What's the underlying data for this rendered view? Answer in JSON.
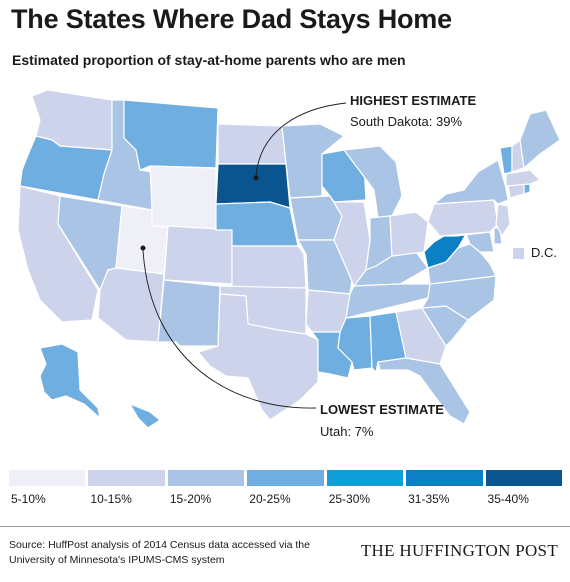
{
  "title": "The States Where Dad Stays Home",
  "subtitle": "Estimated proportion of stay-at-home parents who are men",
  "colors": {
    "c1": "#efeff8",
    "c2": "#cdd3ea",
    "c3": "#a9c4e4",
    "c4": "#6eaee0",
    "c5": "#129fd9",
    "c6": "#0c7fc5",
    "c7": "#0a5590"
  },
  "legend": [
    "5-10%",
    "10-15%",
    "15-20%",
    "20-25%",
    "25-30%",
    "31-35%",
    "35-40%"
  ],
  "states": [
    {
      "code": "WA",
      "class": "c2"
    },
    {
      "code": "OR",
      "class": "c4"
    },
    {
      "code": "CA",
      "class": "c2"
    },
    {
      "code": "ID",
      "class": "c3"
    },
    {
      "code": "NV",
      "class": "c3"
    },
    {
      "code": "UT",
      "class": "c1"
    },
    {
      "code": "AZ",
      "class": "c2"
    },
    {
      "code": "MT",
      "class": "c4"
    },
    {
      "code": "WY",
      "class": "c1"
    },
    {
      "code": "CO",
      "class": "c2"
    },
    {
      "code": "NM",
      "class": "c3"
    },
    {
      "code": "ND",
      "class": "c2"
    },
    {
      "code": "SD",
      "class": "c7"
    },
    {
      "code": "NE",
      "class": "c4"
    },
    {
      "code": "KS",
      "class": "c2"
    },
    {
      "code": "OK",
      "class": "c2"
    },
    {
      "code": "TX",
      "class": "c2"
    },
    {
      "code": "MN",
      "class": "c3"
    },
    {
      "code": "IA",
      "class": "c3"
    },
    {
      "code": "MO",
      "class": "c3"
    },
    {
      "code": "AR",
      "class": "c2"
    },
    {
      "code": "LA",
      "class": "c4"
    },
    {
      "code": "WI",
      "class": "c4"
    },
    {
      "code": "IL",
      "class": "c2"
    },
    {
      "code": "MS",
      "class": "c4"
    },
    {
      "code": "MI",
      "class": "c3"
    },
    {
      "code": "IN",
      "class": "c3"
    },
    {
      "code": "KY",
      "class": "c3"
    },
    {
      "code": "TN",
      "class": "c3"
    },
    {
      "code": "AL",
      "class": "c4"
    },
    {
      "code": "OH",
      "class": "c2"
    },
    {
      "code": "WV",
      "class": "c6"
    },
    {
      "code": "GA",
      "class": "c2"
    },
    {
      "code": "FL",
      "class": "c3"
    },
    {
      "code": "SC",
      "class": "c3"
    },
    {
      "code": "NC",
      "class": "c3"
    },
    {
      "code": "VA",
      "class": "c3"
    },
    {
      "code": "PA",
      "class": "c2"
    },
    {
      "code": "NY",
      "class": "c3"
    },
    {
      "code": "VT",
      "class": "c4"
    },
    {
      "code": "NH",
      "class": "c2"
    },
    {
      "code": "ME",
      "class": "c3"
    },
    {
      "code": "MA",
      "class": "c2"
    },
    {
      "code": "CT",
      "class": "c2"
    },
    {
      "code": "RI",
      "class": "c4"
    },
    {
      "code": "NJ",
      "class": "c2"
    },
    {
      "code": "DE",
      "class": "c3"
    },
    {
      "code": "MD",
      "class": "c3"
    },
    {
      "code": "AK",
      "class": "c4"
    },
    {
      "code": "HI",
      "class": "c4"
    }
  ],
  "annotations": {
    "highest_heading": "HIGHEST ESTIMATE",
    "highest_value": "South Dakota: 39%",
    "lowest_heading": "LOWEST ESTIMATE",
    "lowest_value": "Utah: 7%",
    "dc_label": "D.C."
  },
  "source": "Source: HuffPost analysis of 2014 Census data accessed via the University of Minnesota's IPUMS-CMS system",
  "brand": "THE HUFFINGTON POST"
}
